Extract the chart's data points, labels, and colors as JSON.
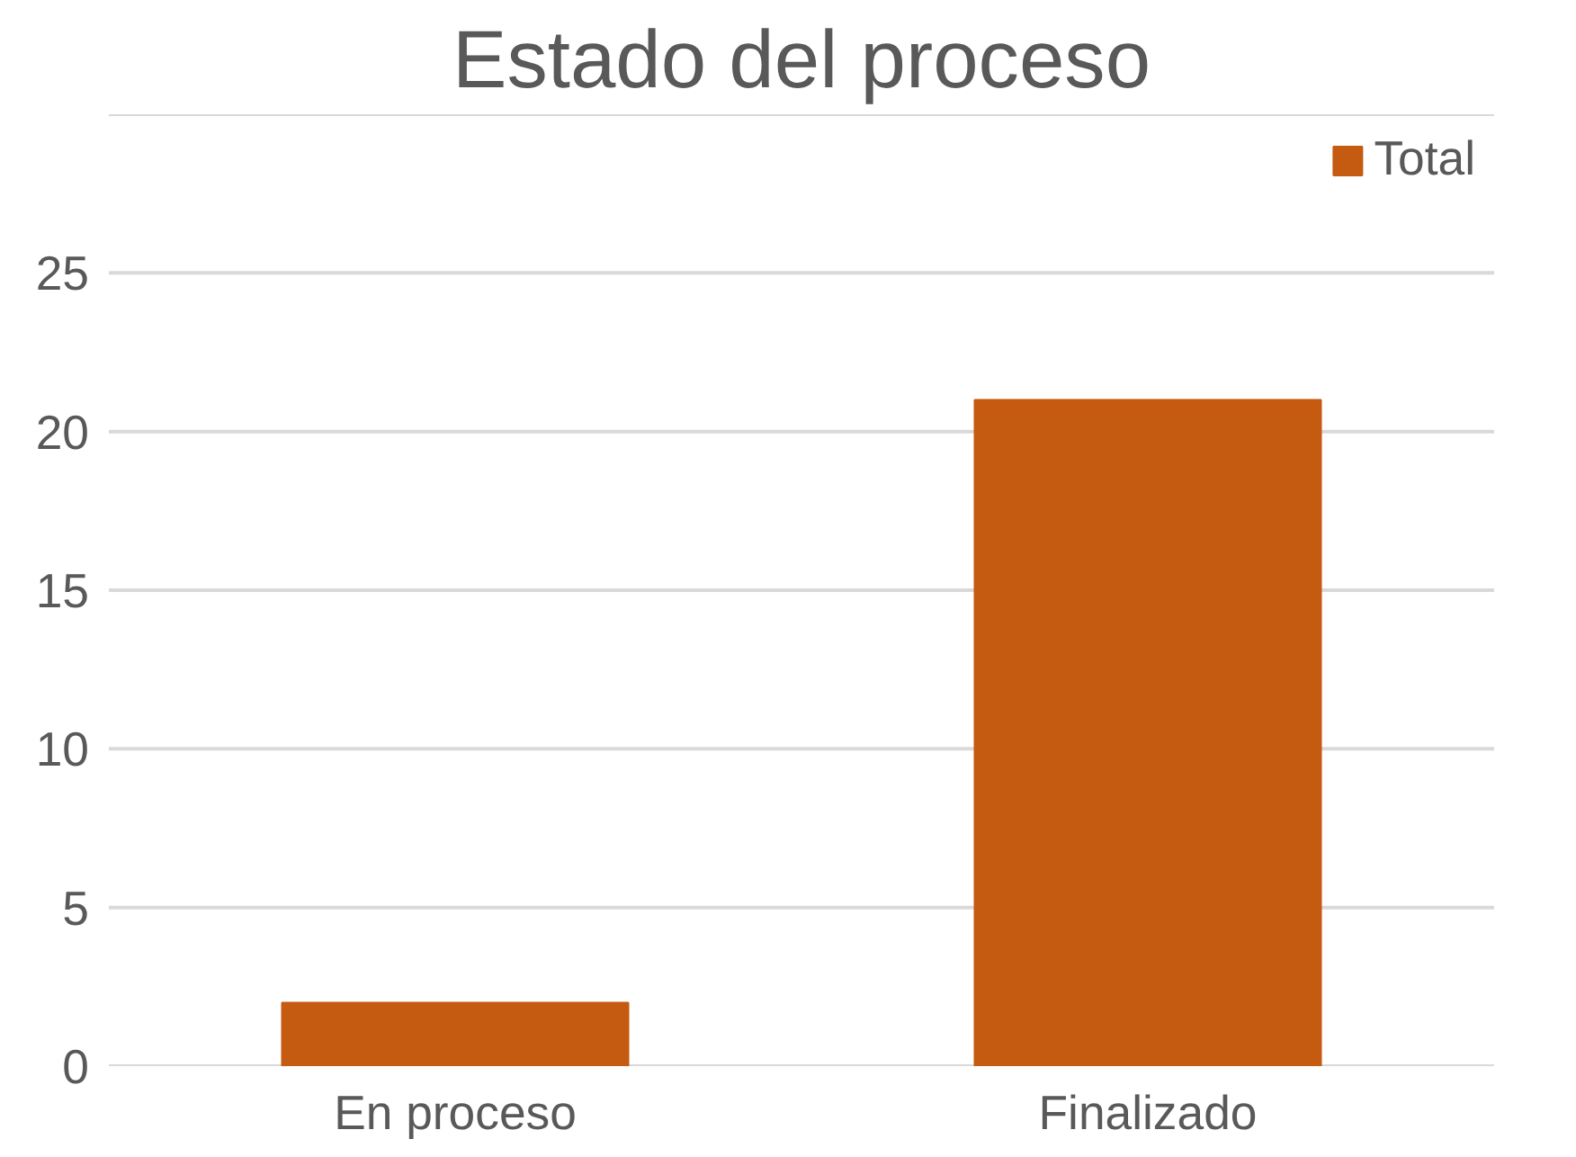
{
  "chart_data": {
    "type": "bar",
    "title": "Estado del proceso",
    "categories": [
      "En proceso",
      "Finalizado"
    ],
    "series": [
      {
        "name": "Total",
        "color": "#c55a11",
        "values": [
          2,
          21
        ]
      }
    ],
    "ylim": [
      0,
      30
    ],
    "yticks": [
      0,
      5,
      10,
      15,
      20,
      25,
      {
        "value": 30,
        "label": null
      }
    ],
    "grid": "y",
    "legend": "top right"
  }
}
